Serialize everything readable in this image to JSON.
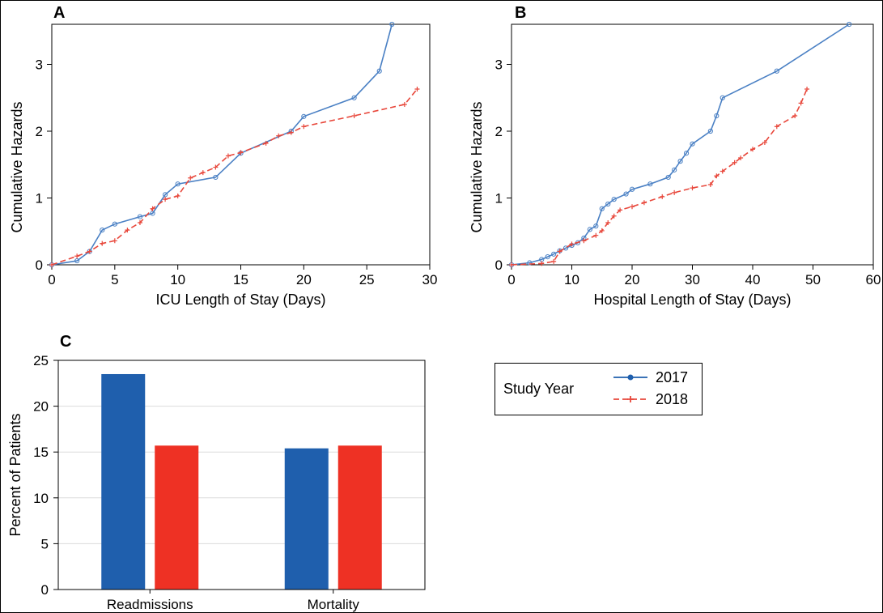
{
  "colors": {
    "series_2017": "#1f5fad",
    "series_2018": "#ee3124",
    "line_2017": "#4a80c4",
    "line_2018": "#e8473b",
    "grid": "#dcdcdc"
  },
  "chart_data": [
    {
      "panel": "A",
      "type": "line",
      "xlabel": "ICU Length of Stay (Days)",
      "ylabel": "Cumulative Hazards",
      "xlim": [
        0,
        30
      ],
      "ylim": [
        0,
        3.6
      ],
      "xticks": [
        0,
        5,
        10,
        15,
        20,
        25,
        30
      ],
      "yticks": [
        0,
        1,
        2,
        3
      ],
      "grid": false,
      "series": [
        {
          "name": "2017",
          "marker": "circle",
          "x": [
            0,
            2,
            3,
            4,
            5,
            7,
            8,
            9,
            10,
            13,
            15,
            19,
            20,
            24,
            26,
            27
          ],
          "y": [
            0,
            0.06,
            0.2,
            0.52,
            0.61,
            0.72,
            0.77,
            1.05,
            1.21,
            1.31,
            1.67,
            2.0,
            2.22,
            2.5,
            2.9,
            3.6
          ]
        },
        {
          "name": "2018",
          "marker": "plus",
          "x": [
            0,
            2,
            3,
            4,
            5,
            6,
            7,
            8,
            9,
            10,
            11,
            12,
            13,
            14,
            15,
            17,
            18,
            19,
            20,
            24,
            28,
            29
          ],
          "y": [
            0,
            0.13,
            0.2,
            0.32,
            0.36,
            0.52,
            0.63,
            0.84,
            0.98,
            1.03,
            1.3,
            1.38,
            1.46,
            1.63,
            1.68,
            1.82,
            1.93,
            1.98,
            2.07,
            2.23,
            2.4,
            2.63
          ]
        }
      ]
    },
    {
      "panel": "B",
      "type": "line",
      "xlabel": "Hospital Length of Stay (Days)",
      "ylabel": "Cumulative Hazards",
      "xlim": [
        0,
        60
      ],
      "ylim": [
        0,
        3.6
      ],
      "xticks": [
        0,
        10,
        20,
        30,
        40,
        50,
        60
      ],
      "yticks": [
        0,
        1,
        2,
        3
      ],
      "grid": false,
      "series": [
        {
          "name": "2017",
          "marker": "circle",
          "x": [
            0,
            3,
            5,
            6,
            7,
            8,
            9,
            10,
            11,
            12,
            13,
            14,
            15,
            16,
            17,
            19,
            20,
            23,
            26,
            27,
            28,
            29,
            30,
            33,
            34,
            35,
            44,
            56
          ],
          "y": [
            0,
            0.03,
            0.08,
            0.12,
            0.16,
            0.21,
            0.25,
            0.29,
            0.33,
            0.4,
            0.53,
            0.58,
            0.84,
            0.91,
            0.98,
            1.06,
            1.13,
            1.21,
            1.31,
            1.42,
            1.55,
            1.67,
            1.81,
            2.0,
            2.23,
            2.5,
            2.9,
            3.6
          ]
        },
        {
          "name": "2018",
          "marker": "plus",
          "x": [
            0,
            5,
            7,
            8,
            10,
            12,
            14,
            15,
            16,
            17,
            18,
            20,
            22,
            25,
            27,
            30,
            33,
            34,
            35,
            37,
            38,
            40,
            42,
            44,
            47,
            48,
            49
          ],
          "y": [
            0,
            0.02,
            0.05,
            0.2,
            0.31,
            0.36,
            0.44,
            0.51,
            0.63,
            0.73,
            0.82,
            0.87,
            0.93,
            1.02,
            1.08,
            1.15,
            1.2,
            1.33,
            1.4,
            1.53,
            1.6,
            1.73,
            1.83,
            2.07,
            2.23,
            2.42,
            2.63
          ]
        }
      ]
    },
    {
      "panel": "C",
      "type": "bar",
      "ylabel": "Percent of Patients",
      "xlabel": "",
      "categories": [
        "Readmissions",
        "Mortality"
      ],
      "ylim": [
        0,
        25
      ],
      "yticks": [
        0,
        5,
        10,
        15,
        20,
        25
      ],
      "grid": true,
      "series": [
        {
          "name": "2017",
          "values": [
            23.5,
            15.4
          ]
        },
        {
          "name": "2018",
          "values": [
            15.7,
            15.7
          ]
        }
      ]
    }
  ],
  "legend": {
    "title": "Study Year",
    "items": [
      {
        "label": "2017",
        "marker": "circle"
      },
      {
        "label": "2018",
        "marker": "plus"
      }
    ]
  }
}
